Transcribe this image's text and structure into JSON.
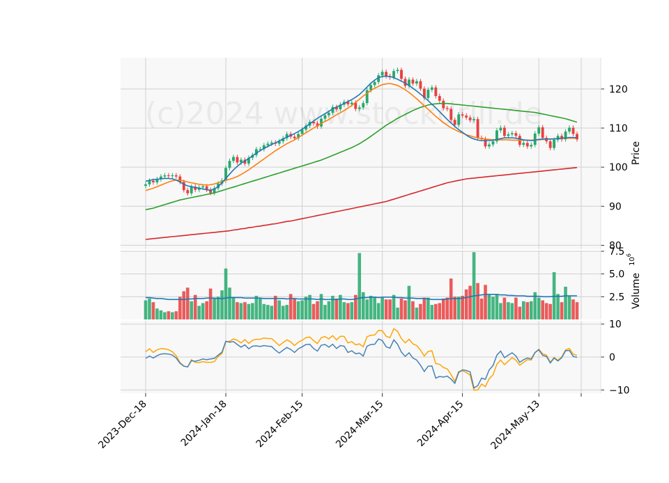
{
  "watermark": "(c)2024 www.stockdrill.de",
  "chart_data": [
    {
      "type": "candlestick",
      "panel": "price",
      "ylabel": "Price",
      "ylim": [
        79,
        128
      ],
      "yticks": [
        80,
        90,
        100,
        110,
        120
      ],
      "xlabels": [
        "2023-Dec-18",
        "2024-Jan-18",
        "2024-Feb-15",
        "2024-Mar-15",
        "2024-Apr-15",
        "2024-May-13"
      ],
      "grid": true,
      "colors": {
        "up": "#26a96c",
        "down": "#e8403f",
        "ma_fast": "#1f77b4",
        "ma_mid": "#ff7f0e",
        "ma_slow": "#2ca02c",
        "ma_long": "#d62728"
      },
      "close": [
        95.6,
        96.5,
        96.1,
        96.9,
        97.6,
        97.9,
        97.7,
        97.9,
        97.6,
        96.2,
        94.1,
        93.3,
        95.0,
        94.2,
        94.8,
        95.1,
        94.2,
        93.4,
        94.6,
        95.8,
        96.6,
        99.8,
        101.6,
        102.6,
        101.2,
        101.9,
        100.9,
        102.4,
        103.1,
        104.6,
        104.6,
        105.6,
        106.0,
        106.3,
        106.0,
        106.6,
        107.4,
        108.5,
        107.8,
        107.4,
        108.5,
        109.6,
        110.6,
        111.6,
        111.2,
        110.4,
        112.4,
        113.3,
        113.9,
        115.4,
        114.8,
        116.0,
        116.7,
        116.1,
        116.5,
        114.9,
        115.3,
        116.4,
        119.7,
        121.0,
        121.8,
        123.5,
        124.4,
        123.3,
        123.0,
        124.6,
        124.9,
        122.6,
        120.8,
        122.4,
        121.4,
        122.0,
        120.1,
        117.7,
        119.8,
        120.4,
        118.2,
        117.0,
        115.1,
        114.9,
        112.1,
        110.8,
        113.5,
        113.2,
        112.7,
        112.0,
        112.3,
        107.5,
        107.2,
        105.3,
        105.8,
        106.6,
        109.4,
        110.1,
        108.0,
        108.4,
        108.7,
        108.0,
        105.7,
        106.2,
        105.3,
        105.7,
        108.6,
        110.2,
        107.5,
        106.6,
        104.9,
        107.0,
        108.0,
        107.1,
        109.1,
        110.1,
        108.5,
        107.1
      ],
      "ma_fast": [
        96.4,
        96.6,
        96.8,
        96.9,
        97.0,
        97.1,
        97.1,
        97.0,
        96.7,
        96.2,
        95.6,
        95.2,
        95.0,
        94.8,
        94.6,
        94.4,
        94.2,
        94.1,
        94.4,
        95.0,
        96.0,
        97.1,
        98.2,
        99.3,
        100.2,
        101.0,
        101.6,
        102.2,
        102.9,
        103.6,
        104.2,
        104.8,
        105.3,
        105.8,
        106.2,
        106.7,
        107.2,
        107.7,
        108.1,
        108.6,
        109.1,
        109.7,
        110.4,
        111.1,
        111.8,
        112.5,
        113.1,
        113.7,
        114.3,
        114.9,
        115.4,
        115.8,
        116.3,
        116.8,
        117.3,
        117.9,
        118.6,
        119.5,
        120.5,
        121.5,
        122.3,
        122.9,
        123.2,
        123.3,
        123.2,
        122.9,
        122.5,
        122.0,
        121.5,
        120.9,
        120.2,
        119.5,
        118.7,
        117.9,
        117.0,
        116.1,
        115.2,
        114.2,
        113.2,
        112.2,
        111.3,
        110.4,
        109.6,
        108.9,
        108.2,
        107.6,
        107.2,
        106.9,
        106.8,
        106.8,
        106.8,
        106.9,
        107.1,
        107.3,
        107.5,
        107.5,
        107.5,
        107.4,
        107.2,
        107.0,
        106.9,
        106.8,
        106.9,
        107.1,
        107.2,
        107.2,
        107.2,
        107.2,
        107.3,
        107.4,
        107.5,
        107.6,
        107.6,
        107.5
      ],
      "ma_mid": [
        94.0,
        94.3,
        94.6,
        95.0,
        95.4,
        95.8,
        96.2,
        96.5,
        96.7,
        96.6,
        96.5,
        96.2,
        96.0,
        95.8,
        95.6,
        95.5,
        95.4,
        95.5,
        95.7,
        96.0,
        96.3,
        96.6,
        96.9,
        97.2,
        97.6,
        98.1,
        98.7,
        99.3,
        100.0,
        100.7,
        101.4,
        102.1,
        102.8,
        103.5,
        104.2,
        104.8,
        105.4,
        106.0,
        106.5,
        107.0,
        107.6,
        108.2,
        108.8,
        109.4,
        110.0,
        110.6,
        111.2,
        111.7,
        112.2,
        112.8,
        113.4,
        113.9,
        114.5,
        115.1,
        115.8,
        116.6,
        117.4,
        118.2,
        118.9,
        119.6,
        120.2,
        120.7,
        121.1,
        121.3,
        121.4,
        121.2,
        120.9,
        120.4,
        119.8,
        119.1,
        118.3,
        117.5,
        116.6,
        115.7,
        114.8,
        113.9,
        113.0,
        112.2,
        111.4,
        110.7,
        110.1,
        109.6,
        109.1,
        108.7,
        108.3,
        108.0,
        107.7,
        107.5,
        107.3,
        107.2,
        107.1,
        107.0,
        107.0,
        107.0,
        107.0,
        107.0,
        106.9,
        106.9,
        106.9,
        106.9,
        106.9,
        106.9,
        107.0,
        107.0,
        107.1,
        107.1,
        107.2,
        107.2,
        107.3,
        107.3,
        107.4,
        107.4,
        107.4,
        107.4
      ],
      "ma_slow": [
        89.1,
        89.3,
        89.5,
        89.8,
        90.1,
        90.4,
        90.7,
        91.0,
        91.3,
        91.6,
        91.8,
        92.0,
        92.2,
        92.4,
        92.6,
        92.8,
        93.0,
        93.2,
        93.4,
        93.7,
        94.0,
        94.3,
        94.6,
        94.9,
        95.2,
        95.5,
        95.8,
        96.1,
        96.4,
        96.7,
        97.0,
        97.3,
        97.6,
        97.9,
        98.2,
        98.5,
        98.8,
        99.1,
        99.4,
        99.7,
        100.0,
        100.3,
        100.6,
        100.9,
        101.2,
        101.5,
        101.8,
        102.2,
        102.6,
        103.0,
        103.4,
        103.8,
        104.2,
        104.6,
        105.0,
        105.5,
        106.0,
        106.6,
        107.2,
        107.9,
        108.6,
        109.3,
        110.0,
        110.7,
        111.3,
        111.9,
        112.5,
        113.0,
        113.5,
        114.0,
        114.5,
        114.9,
        115.3,
        115.6,
        115.9,
        116.1,
        116.2,
        116.3,
        116.3,
        116.3,
        116.2,
        116.1,
        116.0,
        115.9,
        115.8,
        115.7,
        115.6,
        115.5,
        115.4,
        115.3,
        115.2,
        115.1,
        115.0,
        114.9,
        114.8,
        114.7,
        114.6,
        114.5,
        114.4,
        114.3,
        114.2,
        114.1,
        114.0,
        113.8,
        113.6,
        113.4,
        113.2,
        113.0,
        112.8,
        112.6,
        112.4,
        112.1,
        111.8,
        111.5
      ],
      "ma_long": [
        81.5,
        81.6,
        81.7,
        81.8,
        81.9,
        82.0,
        82.1,
        82.2,
        82.3,
        82.4,
        82.5,
        82.6,
        82.7,
        82.8,
        82.9,
        83.0,
        83.1,
        83.2,
        83.3,
        83.4,
        83.5,
        83.6,
        83.7,
        83.9,
        84.0,
        84.2,
        84.3,
        84.5,
        84.6,
        84.8,
        84.9,
        85.1,
        85.2,
        85.4,
        85.5,
        85.7,
        85.9,
        86.1,
        86.2,
        86.4,
        86.6,
        86.8,
        87.0,
        87.2,
        87.4,
        87.6,
        87.8,
        88.0,
        88.2,
        88.4,
        88.6,
        88.8,
        89.0,
        89.2,
        89.4,
        89.6,
        89.8,
        90.0,
        90.2,
        90.4,
        90.6,
        90.8,
        91.0,
        91.2,
        91.5,
        91.8,
        92.1,
        92.4,
        92.7,
        93.0,
        93.3,
        93.6,
        93.9,
        94.2,
        94.5,
        94.8,
        95.1,
        95.4,
        95.7,
        96.0,
        96.2,
        96.4,
        96.6,
        96.8,
        97.0,
        97.1,
        97.2,
        97.3,
        97.4,
        97.5,
        97.6,
        97.7,
        97.8,
        97.9,
        98.0,
        98.1,
        98.2,
        98.3,
        98.4,
        98.5,
        98.6,
        98.7,
        98.8,
        98.9,
        99.0,
        99.1,
        99.2,
        99.3,
        99.4,
        99.5,
        99.6,
        99.7,
        99.8,
        99.9
      ]
    },
    {
      "type": "bar",
      "panel": "volume",
      "ylabel": "Volume",
      "ylabel_exponent": "10^6",
      "ylim": [
        0,
        7.5
      ],
      "yticks": [
        2.5,
        5.0,
        7.5
      ],
      "grid": true,
      "volume": [
        2.1,
        2.3,
        1.9,
        1.2,
        1.0,
        0.8,
        0.9,
        0.8,
        0.9,
        2.5,
        3.1,
        3.5,
        2.0,
        2.7,
        1.5,
        1.8,
        2.0,
        3.4,
        2.3,
        2.5,
        3.2,
        5.6,
        3.5,
        2.4,
        1.9,
        1.8,
        1.9,
        1.7,
        1.8,
        2.6,
        2.3,
        1.7,
        1.6,
        1.5,
        2.6,
        2.1,
        1.5,
        1.6,
        2.8,
        2.3,
        2.0,
        2.1,
        2.5,
        2.7,
        1.7,
        2.0,
        2.8,
        1.6,
        2.0,
        2.6,
        2.3,
        2.7,
        1.9,
        1.8,
        1.9,
        2.7,
        7.3,
        3.0,
        2.2,
        2.6,
        2.5,
        1.8,
        2.4,
        2.2,
        2.2,
        2.7,
        1.3,
        2.3,
        2.1,
        3.7,
        2.0,
        1.3,
        1.7,
        2.4,
        2.4,
        1.6,
        1.7,
        1.8,
        2.3,
        2.4,
        4.5,
        2.5,
        2.5,
        2.6,
        3.3,
        3.7,
        7.4,
        4.0,
        2.3,
        3.8,
        2.8,
        2.5,
        2.8,
        1.8,
        2.4,
        1.9,
        1.8,
        2.4,
        1.4,
        2.0,
        1.9,
        2.0,
        3.0,
        2.4,
        2.1,
        1.8,
        1.7,
        5.2,
        2.8,
        1.9,
        3.6,
        2.6,
        2.2,
        1.9
      ],
      "volume_ma": [
        2.4,
        2.4,
        2.35,
        2.3,
        2.3,
        2.25,
        2.2,
        2.2,
        2.2,
        2.2,
        2.2,
        2.25,
        2.25,
        2.3,
        2.3,
        2.3,
        2.35,
        2.35,
        2.35,
        2.3,
        2.3,
        2.35,
        2.4,
        2.4,
        2.4,
        2.4,
        2.35,
        2.35,
        2.35,
        2.35,
        2.35,
        2.3,
        2.3,
        2.3,
        2.3,
        2.3,
        2.3,
        2.25,
        2.3,
        2.3,
        2.25,
        2.25,
        2.25,
        2.25,
        2.25,
        2.2,
        2.25,
        2.2,
        2.2,
        2.2,
        2.2,
        2.25,
        2.25,
        2.2,
        2.2,
        2.25,
        2.35,
        2.4,
        2.4,
        2.45,
        2.45,
        2.4,
        2.45,
        2.45,
        2.45,
        2.45,
        2.4,
        2.4,
        2.35,
        2.35,
        2.35,
        2.3,
        2.3,
        2.3,
        2.25,
        2.2,
        2.2,
        2.2,
        2.2,
        2.25,
        2.3,
        2.3,
        2.3,
        2.35,
        2.4,
        2.5,
        2.6,
        2.65,
        2.7,
        2.75,
        2.75,
        2.75,
        2.75,
        2.7,
        2.7,
        2.65,
        2.65,
        2.6,
        2.6,
        2.6,
        2.55,
        2.55,
        2.55,
        2.55,
        2.5,
        2.5,
        2.5,
        2.55,
        2.55,
        2.55,
        2.6,
        2.6,
        2.6,
        2.6
      ]
    },
    {
      "type": "line",
      "panel": "oscillator",
      "ylim": [
        -11,
        11
      ],
      "yticks": [
        -10,
        0,
        10
      ],
      "grid": true,
      "colors": {
        "fast": "#ffa500",
        "slow": "#4682b4"
      },
      "fast": [
        1.6,
        2.5,
        1.4,
        2.2,
        2.6,
        2.5,
        2.2,
        1.6,
        0.4,
        -1.7,
        -2.7,
        -3.0,
        -0.8,
        -1.6,
        -1.7,
        -1.4,
        -1.6,
        -1.6,
        -1.4,
        0.2,
        1.1,
        4.6,
        4.8,
        5.5,
        5.1,
        4.3,
        5.3,
        4.1,
        5.1,
        5.4,
        5.4,
        5.8,
        5.6,
        5.6,
        4.6,
        3.5,
        4.4,
        5.2,
        4.6,
        3.5,
        4.5,
        5.1,
        5.9,
        6.1,
        5.0,
        4.1,
        5.9,
        6.2,
        5.5,
        6.5,
        5.2,
        6.3,
        6.3,
        4.3,
        4.7,
        3.7,
        4.0,
        3.1,
        6.2,
        6.6,
        6.7,
        8.1,
        8.0,
        6.3,
        5.9,
        8.6,
        7.8,
        5.6,
        4.3,
        5.4,
        4.0,
        3.5,
        2.1,
        0.3,
        1.7,
        1.9,
        -2.0,
        -2.2,
        -3.2,
        -3.6,
        -5.3,
        -7.4,
        -4.4,
        -4.2,
        -4.7,
        -5.5,
        -10.1,
        -10.0,
        -8.2,
        -9.0,
        -6.6,
        -5.4,
        -2.2,
        -0.9,
        -2.3,
        -1.3,
        -0.2,
        -1.0,
        -2.5,
        -1.6,
        -0.8,
        -0.9,
        1.3,
        2.4,
        1.0,
        0.6,
        -1.6,
        -0.1,
        -1.0,
        0.0,
        2.2,
        2.6,
        0.9,
        0.5
      ],
      "slow": [
        -0.4,
        0.3,
        -0.3,
        0.4,
        0.9,
        1.0,
        0.9,
        0.6,
        -0.3,
        -1.9,
        -2.8,
        -3.0,
        -1.1,
        -1.3,
        -1.0,
        -0.6,
        -0.8,
        -0.6,
        -0.4,
        0.6,
        1.5,
        4.8,
        4.5,
        4.7,
        3.8,
        3.0,
        3.7,
        2.5,
        3.3,
        3.4,
        3.2,
        3.5,
        3.3,
        3.2,
        2.1,
        1.2,
        2.1,
        2.9,
        2.3,
        1.4,
        2.5,
        3.1,
        3.8,
        3.9,
        2.6,
        1.8,
        3.6,
        3.8,
        3.0,
        3.9,
        2.6,
        3.5,
        3.3,
        1.4,
        1.9,
        1.0,
        1.2,
        0.3,
        3.3,
        3.8,
        3.9,
        5.5,
        5.0,
        3.1,
        2.7,
        5.2,
        3.9,
        1.5,
        0.2,
        1.3,
        -0.3,
        -0.9,
        -2.5,
        -4.4,
        -2.8,
        -2.7,
        -6.4,
        -5.9,
        -6.1,
        -5.8,
        -6.7,
        -8.0,
        -4.7,
        -3.9,
        -4.1,
        -4.5,
        -9.4,
        -8.7,
        -6.4,
        -6.8,
        -3.9,
        -2.6,
        0.6,
        1.8,
        -0.2,
        0.6,
        1.3,
        0.3,
        -1.6,
        -0.8,
        -0.3,
        -0.6,
        1.4,
        2.2,
        0.5,
        0.2,
        -1.8,
        -0.3,
        -1.2,
        -0.2,
        1.9,
        2.0,
        0.2,
        -0.1
      ]
    }
  ]
}
